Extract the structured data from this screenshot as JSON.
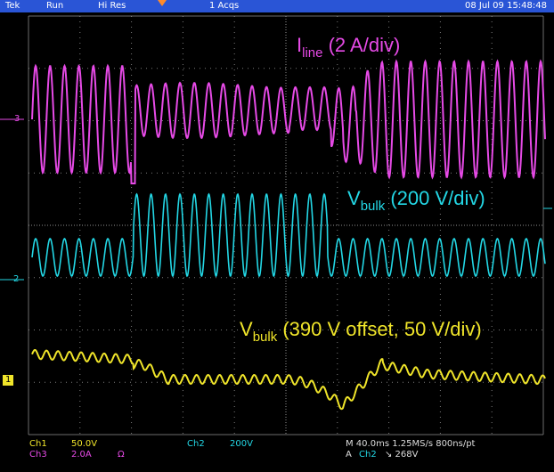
{
  "header": {
    "brand": "Tek",
    "run_state": "Run",
    "acq_mode": "Hi Res",
    "acq_count": "1 Acqs",
    "datetime": "08 Jul 09 15:48:48"
  },
  "labels": {
    "iline_main": "I",
    "iline_sub": "line",
    "iline_rest": " (2 A/div)",
    "vbulk_ac_main": "V",
    "vbulk_ac_sub": "bulk",
    "vbulk_ac_rest": " (200 V/div)",
    "vbulk_dc_main": "V",
    "vbulk_dc_sub": "bulk",
    "vbulk_dc_rest": " (390 V offset, 50 V/div)"
  },
  "channel_markers": {
    "ch3": "3",
    "ch2": "2",
    "ch1": "1"
  },
  "footer": {
    "ch1_label": "Ch1",
    "ch1_scale": "50.0V",
    "ch3_label": "Ch3",
    "ch3_scale": "2.0A",
    "ch3_coupling": "Ω",
    "ch2_label": "Ch2",
    "ch2_scale": "200V",
    "timebase": "M 40.0ms  1.25MS/s      800ns/pt",
    "trigger_prefix": "A",
    "trigger_source": "Ch2",
    "trigger_slope_level": "↘ 268V"
  },
  "colors": {
    "ch1": "#f0e52a",
    "ch2": "#23d7e5",
    "ch3": "#e64ae6",
    "header_bg": "#2a55d6",
    "trigger": "#ff8a2a"
  }
}
